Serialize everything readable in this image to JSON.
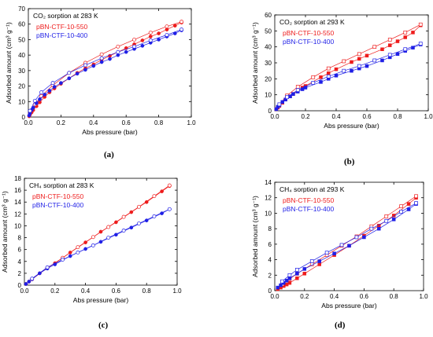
{
  "colors": {
    "red": "#ee1c1c",
    "blue": "#1f1fe6"
  },
  "chart_data": [
    {
      "type": "scatter",
      "caption": "(a)",
      "title": "CO₂ sorption at 283 K",
      "xlabel": "Abs pressure (bar)",
      "ylabel": "Adsorbed amount (cm³ g⁻¹)",
      "xlim": [
        0,
        1.0
      ],
      "ylim": [
        0,
        70
      ],
      "xticks": [
        0.0,
        0.2,
        0.4,
        0.6,
        0.8,
        1.0
      ],
      "xtick_labels": [
        "0.0",
        "0.2",
        "0.4",
        "0.6",
        "0.8",
        "1.0"
      ],
      "yticks": [
        0,
        10,
        20,
        30,
        40,
        50,
        60,
        70
      ],
      "ytick_labels": [
        "0",
        "10",
        "20",
        "30",
        "40",
        "50",
        "60",
        "70"
      ],
      "grid": false,
      "legend_position": "top-left",
      "marker": "circle",
      "series": [
        {
          "name": "pBN-CTF-10-550",
          "color": "red",
          "ads_x": [
            0.005,
            0.01,
            0.02,
            0.03,
            0.05,
            0.07,
            0.1,
            0.13,
            0.16,
            0.2,
            0.25,
            0.3,
            0.35,
            0.4,
            0.45,
            0.5,
            0.55,
            0.6,
            0.65,
            0.7,
            0.75,
            0.8,
            0.85,
            0.9,
            0.94
          ],
          "ads_y": [
            0.5,
            1.5,
            3,
            4.5,
            7,
            9.5,
            13,
            16,
            18.5,
            21.5,
            25,
            28.5,
            31.5,
            34,
            37,
            39.5,
            42,
            44.5,
            47,
            49.5,
            52,
            54,
            56.5,
            59,
            61
          ],
          "des_x": [
            0.94,
            0.85,
            0.75,
            0.65,
            0.55,
            0.45,
            0.35,
            0.25,
            0.15,
            0.08,
            0.04,
            0.01
          ],
          "des_y": [
            61.5,
            58.5,
            54.5,
            50,
            45.5,
            40.5,
            35,
            28.5,
            20.5,
            13.5,
            8,
            2.5
          ]
        },
        {
          "name": "pBN-CTF-10-400",
          "color": "blue",
          "ads_x": [
            0.005,
            0.01,
            0.02,
            0.03,
            0.05,
            0.07,
            0.1,
            0.13,
            0.16,
            0.2,
            0.25,
            0.3,
            0.35,
            0.4,
            0.45,
            0.5,
            0.55,
            0.6,
            0.65,
            0.7,
            0.75,
            0.8,
            0.85,
            0.9,
            0.94
          ],
          "ads_y": [
            1,
            2.5,
            4.5,
            6,
            9,
            11.5,
            14.5,
            17,
            19.5,
            22,
            25,
            28,
            30.5,
            33,
            35.5,
            37.5,
            40,
            42,
            44,
            46,
            48,
            50,
            52,
            54,
            56
          ],
          "des_x": [
            0.94,
            0.85,
            0.75,
            0.65,
            0.55,
            0.45,
            0.35,
            0.25,
            0.15,
            0.08,
            0.04,
            0.01
          ],
          "des_y": [
            56.5,
            53,
            49.5,
            45.5,
            42,
            38,
            33.5,
            28.5,
            22,
            16,
            10.5,
            4
          ]
        }
      ]
    },
    {
      "type": "scatter",
      "caption": "(b)",
      "title": "CO₂ sorption at 293 K",
      "xlabel": "Abs pressure (bar)",
      "ylabel": "Adsorbed amount (cm³ g⁻¹)",
      "xlim": [
        0,
        1.0
      ],
      "ylim": [
        0,
        60
      ],
      "xticks": [
        0.0,
        0.2,
        0.4,
        0.6,
        0.8,
        1.0
      ],
      "xtick_labels": [
        "0.0",
        "0.2",
        "0.4",
        "0.6",
        "0.8",
        "1.0"
      ],
      "yticks": [
        0,
        10,
        20,
        30,
        40,
        50,
        60
      ],
      "ytick_labels": [
        "0",
        "10",
        "20",
        "30",
        "40",
        "50",
        "60"
      ],
      "grid": false,
      "legend_position": "top-left",
      "marker": "square",
      "series": [
        {
          "name": "pBN-CTF-10-550",
          "color": "red",
          "ads_x": [
            0.01,
            0.02,
            0.03,
            0.05,
            0.07,
            0.1,
            0.12,
            0.15,
            0.18,
            0.2,
            0.3,
            0.35,
            0.4,
            0.5,
            0.55,
            0.6,
            0.7,
            0.75,
            0.8,
            0.85,
            0.9,
            0.95
          ],
          "ads_y": [
            1,
            2,
            3,
            5,
            7,
            9,
            10.5,
            12.5,
            14.5,
            15.5,
            21,
            23.5,
            26,
            30.5,
            32.5,
            34.5,
            38.5,
            41,
            43.5,
            46,
            49,
            53.5
          ],
          "des_x": [
            0.95,
            0.85,
            0.75,
            0.65,
            0.55,
            0.45,
            0.35,
            0.25,
            0.15,
            0.08,
            0.03
          ],
          "des_y": [
            54,
            49,
            44.5,
            40,
            35.5,
            31,
            26.5,
            21,
            15,
            9.5,
            4
          ]
        },
        {
          "name": "pBN-CTF-10-400",
          "color": "blue",
          "ads_x": [
            0.01,
            0.02,
            0.03,
            0.05,
            0.07,
            0.1,
            0.12,
            0.15,
            0.18,
            0.2,
            0.3,
            0.35,
            0.4,
            0.5,
            0.55,
            0.6,
            0.7,
            0.75,
            0.8,
            0.85,
            0.9,
            0.95
          ],
          "ads_y": [
            1,
            2.5,
            3.5,
            5.5,
            7,
            9,
            10.5,
            12,
            13.5,
            14.5,
            18,
            20,
            22,
            25,
            26.5,
            28,
            31.5,
            33.5,
            35.5,
            37.5,
            39.5,
            41.5
          ],
          "des_x": [
            0.95,
            0.85,
            0.75,
            0.65,
            0.55,
            0.45,
            0.35,
            0.25,
            0.15,
            0.08,
            0.03
          ],
          "des_y": [
            42,
            38.5,
            35,
            31.5,
            28,
            25,
            21.5,
            17.5,
            13,
            8.5,
            4
          ]
        }
      ]
    },
    {
      "type": "scatter",
      "caption": "(c)",
      "title": "CH₄ sorption at 283 K",
      "xlabel": "Abs pressure (bar)",
      "ylabel": "Adsorbed amount (cm³ g⁻¹)",
      "xlim": [
        0,
        1.0
      ],
      "ylim": [
        0,
        18
      ],
      "xticks": [
        0.0,
        0.2,
        0.4,
        0.6,
        0.8,
        1.0
      ],
      "xtick_labels": [
        "0.0",
        "0.2",
        "0.4",
        "0.6",
        "0.8",
        "1.0"
      ],
      "yticks": [
        0,
        2,
        4,
        6,
        8,
        10,
        12,
        14,
        16,
        18
      ],
      "ytick_labels": [
        "0",
        "2",
        "4",
        "6",
        "8",
        "10",
        "12",
        "14",
        "16",
        "18"
      ],
      "grid": false,
      "legend_position": "top-left",
      "marker": "circle",
      "series": [
        {
          "name": "pBN-CTF-10-550",
          "color": "red",
          "ads_x": [
            0.01,
            0.03,
            0.05,
            0.1,
            0.15,
            0.2,
            0.3,
            0.4,
            0.5,
            0.6,
            0.7,
            0.8,
            0.9,
            0.95
          ],
          "ads_y": [
            0.2,
            0.6,
            1.0,
            2.0,
            2.9,
            3.7,
            5.5,
            7.2,
            9.0,
            10.6,
            12.3,
            14.0,
            15.8,
            16.7
          ],
          "des_x": [
            0.95,
            0.85,
            0.75,
            0.65,
            0.55,
            0.45,
            0.35,
            0.25,
            0.15,
            0.05
          ],
          "des_y": [
            16.8,
            15.0,
            13.2,
            11.5,
            9.8,
            8.1,
            6.4,
            4.6,
            2.9,
            1.0
          ]
        },
        {
          "name": "pBN-CTF-10-400",
          "color": "blue",
          "ads_x": [
            0.01,
            0.03,
            0.05,
            0.1,
            0.15,
            0.2,
            0.3,
            0.4,
            0.5,
            0.6,
            0.7,
            0.8,
            0.9,
            0.95
          ],
          "ads_y": [
            0.2,
            0.6,
            1.0,
            2.0,
            2.8,
            3.5,
            4.9,
            6.1,
            7.3,
            8.5,
            9.7,
            10.9,
            12.1,
            12.8
          ],
          "des_x": [
            0.95,
            0.85,
            0.75,
            0.65,
            0.55,
            0.45,
            0.35,
            0.25,
            0.15,
            0.05
          ],
          "des_y": [
            12.8,
            11.6,
            10.4,
            9.2,
            8.0,
            6.7,
            5.5,
            4.3,
            3.0,
            1.1
          ]
        }
      ]
    },
    {
      "type": "scatter",
      "caption": "(d)",
      "title": "CH₄ sorption at 293 K",
      "xlabel": "Abs pressure (bar)",
      "ylabel": "Adsorbed amount (cm³ g⁻¹)",
      "xlim": [
        0,
        1.0
      ],
      "ylim": [
        0,
        14
      ],
      "xticks": [
        0.0,
        0.2,
        0.4,
        0.6,
        0.8,
        1.0
      ],
      "xtick_labels": [
        "0.0",
        "0.2",
        "0.4",
        "0.6",
        "0.8",
        "1.0"
      ],
      "yticks": [
        0,
        2,
        4,
        6,
        8,
        10,
        12,
        14
      ],
      "ytick_labels": [
        "0",
        "2",
        "4",
        "6",
        "8",
        "10",
        "12",
        "14"
      ],
      "grid": false,
      "legend_position": "top-left",
      "marker": "square",
      "series": [
        {
          "name": "pBN-CTF-10-550",
          "color": "red",
          "ads_x": [
            0.02,
            0.04,
            0.06,
            0.08,
            0.1,
            0.15,
            0.2,
            0.3,
            0.4,
            0.5,
            0.6,
            0.7,
            0.8,
            0.9,
            0.95
          ],
          "ads_y": [
            0.2,
            0.4,
            0.6,
            0.8,
            1.0,
            1.6,
            2.2,
            3.4,
            4.6,
            5.8,
            7.1,
            8.4,
            9.7,
            11.2,
            12.0
          ],
          "des_x": [
            0.95,
            0.85,
            0.75,
            0.65,
            0.55,
            0.45,
            0.35,
            0.25,
            0.15,
            0.1,
            0.05
          ],
          "des_y": [
            12.2,
            10.9,
            9.6,
            8.3,
            7.0,
            5.8,
            4.6,
            3.4,
            2.2,
            1.5,
            0.8
          ]
        },
        {
          "name": "pBN-CTF-10-400",
          "color": "blue",
          "ads_x": [
            0.02,
            0.04,
            0.06,
            0.08,
            0.1,
            0.15,
            0.2,
            0.3,
            0.4,
            0.5,
            0.6,
            0.7,
            0.8,
            0.9,
            0.95
          ],
          "ads_y": [
            0.4,
            0.7,
            1.0,
            1.3,
            1.6,
            2.2,
            2.8,
            3.8,
            4.8,
            5.8,
            6.9,
            8.0,
            9.2,
            10.5,
            11.2
          ],
          "des_x": [
            0.95,
            0.85,
            0.75,
            0.65,
            0.55,
            0.45,
            0.35,
            0.25,
            0.15,
            0.1,
            0.05
          ],
          "des_y": [
            11.3,
            10.2,
            9.0,
            8.0,
            6.9,
            5.9,
            4.9,
            3.8,
            2.7,
            2.0,
            1.2
          ]
        }
      ]
    }
  ]
}
